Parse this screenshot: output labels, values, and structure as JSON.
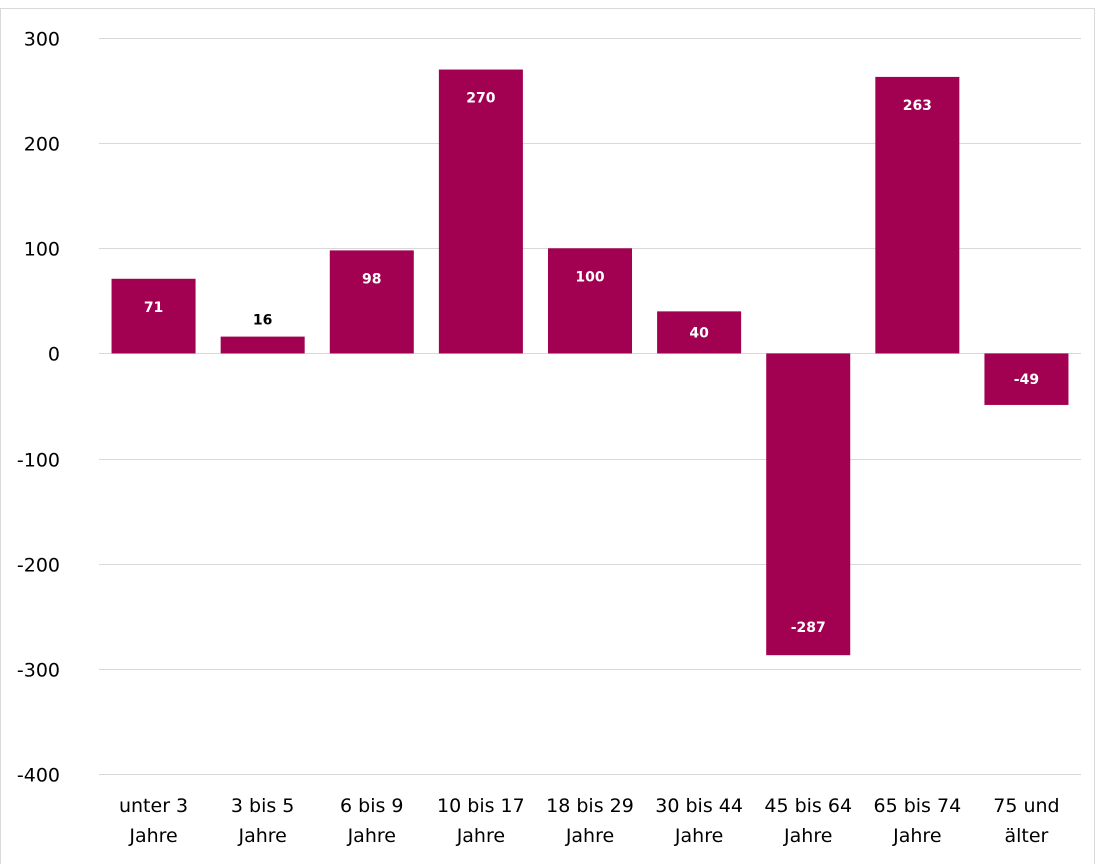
{
  "chart_data": {
    "type": "bar",
    "categories": [
      [
        "unter 3",
        "Jahre"
      ],
      [
        "3 bis 5",
        "Jahre"
      ],
      [
        "6 bis 9",
        "Jahre"
      ],
      [
        "10 bis 17",
        "Jahre"
      ],
      [
        "18 bis 29",
        "Jahre"
      ],
      [
        "30 bis 44",
        "Jahre"
      ],
      [
        "45 bis 64",
        "Jahre"
      ],
      [
        "65 bis 74",
        "Jahre"
      ],
      [
        "75 und",
        "älter"
      ]
    ],
    "values": [
      71,
      16,
      98,
      270,
      100,
      40,
      -287,
      263,
      -49
    ],
    "data_labels": [
      "71",
      "16",
      "98",
      "270",
      "100",
      "40",
      "-287",
      "263",
      "-49"
    ],
    "yticks": [
      300,
      200,
      100,
      0,
      -100,
      -200,
      -300,
      -400
    ],
    "ytick_labels": [
      "300",
      "200",
      "100",
      "0",
      "-100",
      "-200",
      "-300",
      "-400"
    ],
    "ylim": [
      -400,
      300
    ],
    "grid": true,
    "legend": "none",
    "colors": {
      "bar": "#a20050",
      "label_inside": "#ffffff",
      "label_outside": "#000000"
    }
  }
}
